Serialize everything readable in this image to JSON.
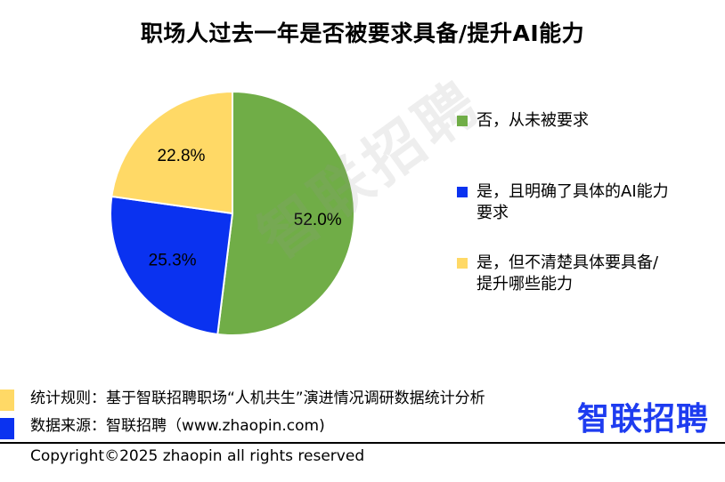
{
  "chart_data": {
    "type": "pie",
    "title": "职场人过去一年是否被要求具备/提升AI能力",
    "slices": [
      {
        "label": "否，从未被要求",
        "value": 52.0,
        "display": "52.0%",
        "color": "#70ad47"
      },
      {
        "label": "是，且明确了具体的AI能力要求",
        "value": 25.3,
        "display": "25.3%",
        "color": "#0a32f0"
      },
      {
        "label": "是，但不清楚具体要具备/提升哪些能力",
        "value": 22.8,
        "display": "22.8%",
        "color": "#ffd966"
      }
    ],
    "legend_position": "right"
  },
  "watermark": "智联招聘",
  "notes": [
    {
      "text": "统计规则：基于智联招聘职场“人机共生”演进情况调研数据统计分析",
      "color": "#ffd966"
    },
    {
      "text": "数据来源：智联招聘（www.zhaopin.com)",
      "color": "#0a32f0"
    }
  ],
  "logo": "智联招聘",
  "copyright": "Copyright©2025 zhaopin all rights reserved"
}
